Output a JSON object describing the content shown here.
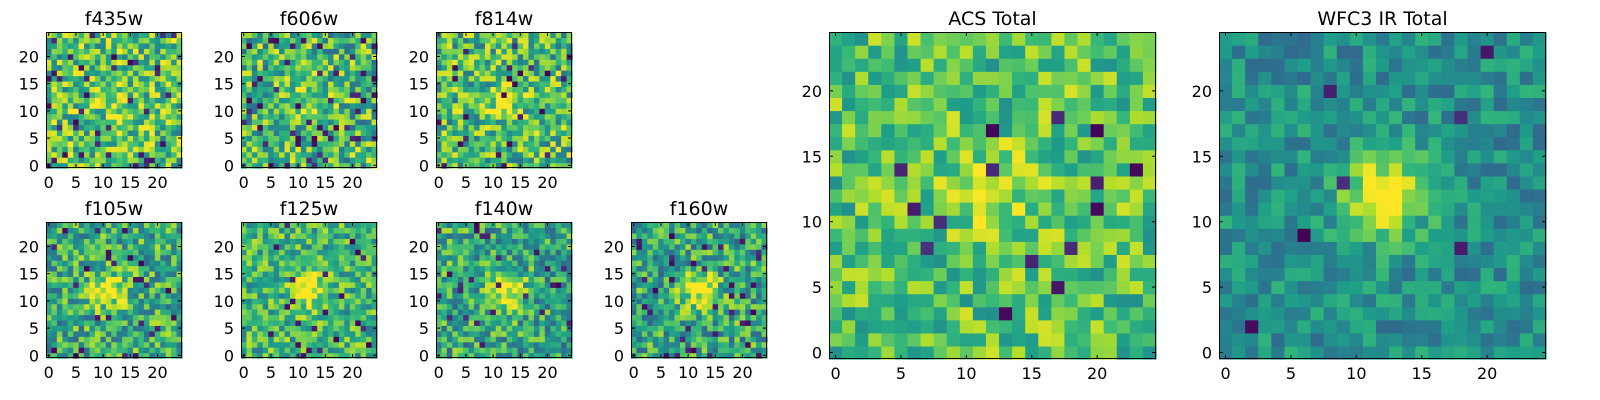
{
  "chart_data": [
    {
      "type": "heatmap",
      "title": "f435w",
      "seed": 11,
      "center": [
        12,
        12
      ],
      "blob": 0.15,
      "bg": 0.72,
      "noise": 0.3,
      "dark": 0.06,
      "xticks": [
        0,
        5,
        10,
        15,
        20
      ],
      "yticks": [
        0,
        5,
        10,
        15,
        20
      ],
      "xlim": [
        0,
        24
      ],
      "ylim": [
        0,
        24
      ],
      "colormap": "viridis"
    },
    {
      "type": "heatmap",
      "title": "f606w",
      "seed": 23,
      "center": [
        12,
        12
      ],
      "blob": 0.25,
      "bg": 0.66,
      "noise": 0.32,
      "dark": 0.07,
      "xticks": [
        0,
        5,
        10,
        15,
        20
      ],
      "yticks": [
        0,
        5,
        10,
        15,
        20
      ],
      "xlim": [
        0,
        24
      ],
      "ylim": [
        0,
        24
      ],
      "colormap": "viridis"
    },
    {
      "type": "heatmap",
      "title": "f814w",
      "seed": 37,
      "center": [
        12,
        12
      ],
      "blob": 0.3,
      "bg": 0.68,
      "noise": 0.3,
      "dark": 0.05,
      "xticks": [
        0,
        5,
        10,
        15,
        20
      ],
      "yticks": [
        0,
        5,
        10,
        15,
        20
      ],
      "xlim": [
        0,
        24
      ],
      "ylim": [
        0,
        24
      ],
      "colormap": "viridis"
    },
    {
      "type": "heatmap",
      "title": "f105w",
      "seed": 41,
      "center": [
        11,
        12
      ],
      "blob": 0.45,
      "bg": 0.62,
      "noise": 0.28,
      "dark": 0.05,
      "xticks": [
        0,
        5,
        10,
        15,
        20
      ],
      "yticks": [
        0,
        5,
        10,
        15,
        20
      ],
      "xlim": [
        0,
        24
      ],
      "ylim": [
        0,
        24
      ],
      "colormap": "viridis"
    },
    {
      "type": "heatmap",
      "title": "f125w",
      "seed": 53,
      "center": [
        12,
        12
      ],
      "blob": 0.4,
      "bg": 0.66,
      "noise": 0.25,
      "dark": 0.04,
      "xticks": [
        0,
        5,
        10,
        15,
        20
      ],
      "yticks": [
        0,
        5,
        10,
        15,
        20
      ],
      "xlim": [
        0,
        24
      ],
      "ylim": [
        0,
        24
      ],
      "colormap": "viridis"
    },
    {
      "type": "heatmap",
      "title": "f140w",
      "seed": 67,
      "center": [
        12,
        12
      ],
      "blob": 0.45,
      "bg": 0.6,
      "noise": 0.28,
      "dark": 0.05,
      "xticks": [
        0,
        5,
        10,
        15,
        20
      ],
      "yticks": [
        0,
        5,
        10,
        15,
        20
      ],
      "xlim": [
        0,
        24
      ],
      "ylim": [
        0,
        24
      ],
      "colormap": "viridis"
    },
    {
      "type": "heatmap",
      "title": "f160w",
      "seed": 79,
      "center": [
        12,
        12
      ],
      "blob": 0.45,
      "bg": 0.6,
      "noise": 0.28,
      "dark": 0.05,
      "xticks": [
        0,
        5,
        10,
        15,
        20
      ],
      "yticks": [
        0,
        5,
        10,
        15,
        20
      ],
      "xlim": [
        0,
        24
      ],
      "ylim": [
        0,
        24
      ],
      "colormap": "viridis"
    },
    {
      "type": "heatmap",
      "title": "ACS Total",
      "seed": 97,
      "center": [
        12,
        12
      ],
      "blob": 0.2,
      "bg": 0.72,
      "noise": 0.22,
      "dark": 0.025,
      "xticks": [
        0,
        5,
        10,
        15,
        20
      ],
      "yticks": [
        0,
        5,
        10,
        15,
        20
      ],
      "xlim": [
        0,
        24
      ],
      "ylim": [
        0,
        24
      ],
      "colormap": "viridis"
    },
    {
      "type": "heatmap",
      "title": "WFC3 IR Total",
      "seed": 113,
      "center": [
        12,
        12
      ],
      "blob": 0.55,
      "bg": 0.5,
      "noise": 0.16,
      "dark": 0.02,
      "xticks": [
        0,
        5,
        10,
        15,
        20
      ],
      "yticks": [
        0,
        5,
        10,
        15,
        20
      ],
      "xlim": [
        0,
        24
      ],
      "ylim": [
        0,
        24
      ],
      "colormap": "viridis"
    }
  ]
}
